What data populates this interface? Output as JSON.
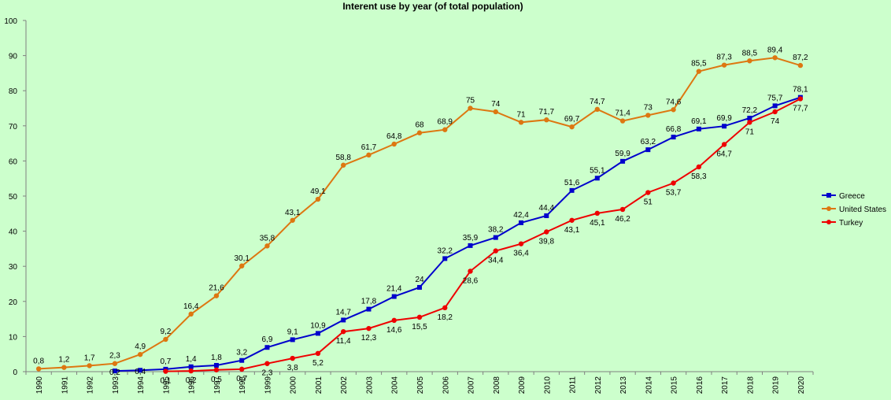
{
  "chart_data": {
    "type": "line",
    "title": "Interent use by year (of total population)",
    "xlabel": "",
    "ylabel": "",
    "ylim": [
      0,
      100
    ],
    "yticks": [
      0,
      10,
      20,
      30,
      40,
      50,
      60,
      70,
      80,
      90,
      100
    ],
    "grid": false,
    "legend_position": "right",
    "categories": [
      "1990",
      "1991",
      "1992",
      "1993",
      "1994",
      "1995",
      "1996",
      "1997",
      "1998",
      "1999",
      "2000",
      "2001",
      "2002",
      "2003",
      "2004",
      "2005",
      "2006",
      "2007",
      "2008",
      "2009",
      "2010",
      "2011",
      "2012",
      "2013",
      "2014",
      "2015",
      "2016",
      "2017",
      "2018",
      "2019",
      "2020"
    ],
    "series": [
      {
        "name": "Greece",
        "color": "#0000cc",
        "marker": "square",
        "values": [
          null,
          null,
          null,
          0.2,
          0.4,
          0.7,
          1.4,
          1.8,
          3.2,
          6.9,
          9.1,
          10.9,
          14.7,
          17.8,
          21.4,
          24,
          32.2,
          35.9,
          38.2,
          42.4,
          44.4,
          51.6,
          55.1,
          59.9,
          63.2,
          66.8,
          69.1,
          69.9,
          72.2,
          75.7,
          78.1
        ],
        "labels": [
          null,
          null,
          null,
          "0,2",
          "0,4",
          "0,7",
          "1,4",
          "1,8",
          "3,2",
          "6,9",
          "9,1",
          "10,9",
          "14,7",
          "17,8",
          "21,4",
          "24",
          "32,2",
          "35,9",
          "38,2",
          "42,4",
          "44,4",
          "51,6",
          "55,1",
          "59,9",
          "63,2",
          "66,8",
          "69,1",
          "69,9",
          "72,2",
          "75,7",
          "78,1"
        ]
      },
      {
        "name": "United States",
        "color": "#dd7711",
        "marker": "circle",
        "values": [
          0.8,
          1.2,
          1.7,
          2.3,
          4.9,
          9.2,
          16.4,
          21.6,
          30.1,
          35.8,
          43.1,
          49.1,
          58.8,
          61.7,
          64.8,
          68,
          68.9,
          75,
          74,
          71,
          71.7,
          69.7,
          74.7,
          71.4,
          73,
          74.6,
          85.5,
          87.3,
          88.5,
          89.4,
          87.2
        ],
        "labels": [
          "0,8",
          "1,2",
          "1,7",
          "2,3",
          "4,9",
          "9,2",
          "16,4",
          "21,6",
          "30,1",
          "35,8",
          "43,1",
          "49,1",
          "58,8",
          "61,7",
          "64,8",
          "68",
          "68,9",
          "75",
          "74",
          "71",
          "71,7",
          "69,7",
          "74,7",
          "71,4",
          "73",
          "74,6",
          "85,5",
          "87,3",
          "88,5",
          "89,4",
          "87,2"
        ]
      },
      {
        "name": "Turkey",
        "color": "#ee0000",
        "marker": "circle",
        "values": [
          null,
          null,
          null,
          null,
          null,
          0.1,
          0.2,
          0.5,
          0.7,
          2.3,
          3.8,
          5.2,
          11.4,
          12.3,
          14.6,
          15.5,
          18.2,
          28.6,
          34.4,
          36.4,
          39.8,
          43.1,
          45.1,
          46.2,
          51,
          53.7,
          58.3,
          64.7,
          71,
          74,
          77.7
        ],
        "labels": [
          null,
          null,
          null,
          null,
          null,
          "0,1",
          "0,2",
          "0,5",
          "0,7",
          "2,3",
          "3,8",
          "5,2",
          "11,4",
          "12,3",
          "14,6",
          "15,5",
          "18,2",
          "28,6",
          "34,4",
          "36,4",
          "39,8",
          "43,1",
          "45,1",
          "46,2",
          "51",
          "53,7",
          "58,3",
          "64,7",
          "71",
          "74",
          "77,7"
        ]
      }
    ]
  }
}
